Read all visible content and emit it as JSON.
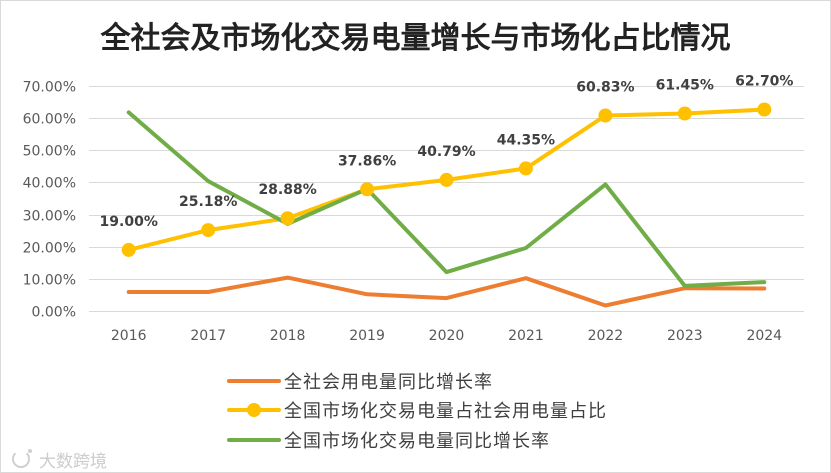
{
  "chart_data": {
    "type": "line",
    "title": "全社会及市场化交易电量增长与市场化占比情况",
    "categories": [
      "2016",
      "2017",
      "2018",
      "2019",
      "2020",
      "2021",
      "2022",
      "2023",
      "2024"
    ],
    "ylim": [
      0,
      70
    ],
    "yticks": [
      {
        "value": 0,
        "label": "0.00%"
      },
      {
        "value": 10,
        "label": "10.00%"
      },
      {
        "value": 20,
        "label": "20.00%"
      },
      {
        "value": 30,
        "label": "30.00%"
      },
      {
        "value": 40,
        "label": "40.00%"
      },
      {
        "value": 50,
        "label": "50.00%"
      },
      {
        "value": 60,
        "label": "60.00%"
      },
      {
        "value": 70,
        "label": "70.00%"
      }
    ],
    "grid": true,
    "legend_position": "bottom",
    "series": [
      {
        "name": "全社会用电量同比增长率",
        "color": "#ED7D31",
        "marker": false,
        "values": [
          5.9,
          5.9,
          10.4,
          5.2,
          4.0,
          10.2,
          1.7,
          7.1,
          7.0
        ]
      },
      {
        "name": "全国市场化交易电量占社会用电量占比",
        "color": "#FFC000",
        "marker": true,
        "values": [
          19.0,
          25.18,
          28.88,
          37.86,
          40.79,
          44.35,
          60.83,
          61.45,
          62.7
        ],
        "labels": [
          "19.00%",
          "25.18%",
          "28.88%",
          "37.86%",
          "40.79%",
          "44.35%",
          "60.83%",
          "61.45%",
          "62.70%"
        ]
      },
      {
        "name": "全国市场化交易电量同比增长率",
        "color": "#70AD47",
        "marker": false,
        "values": [
          61.8,
          40.4,
          27.1,
          38.0,
          12.1,
          19.6,
          39.4,
          7.8,
          9.0
        ]
      }
    ]
  },
  "watermark": {
    "text": "大数跨境",
    "logo_icon": "brand-logo-icon"
  }
}
